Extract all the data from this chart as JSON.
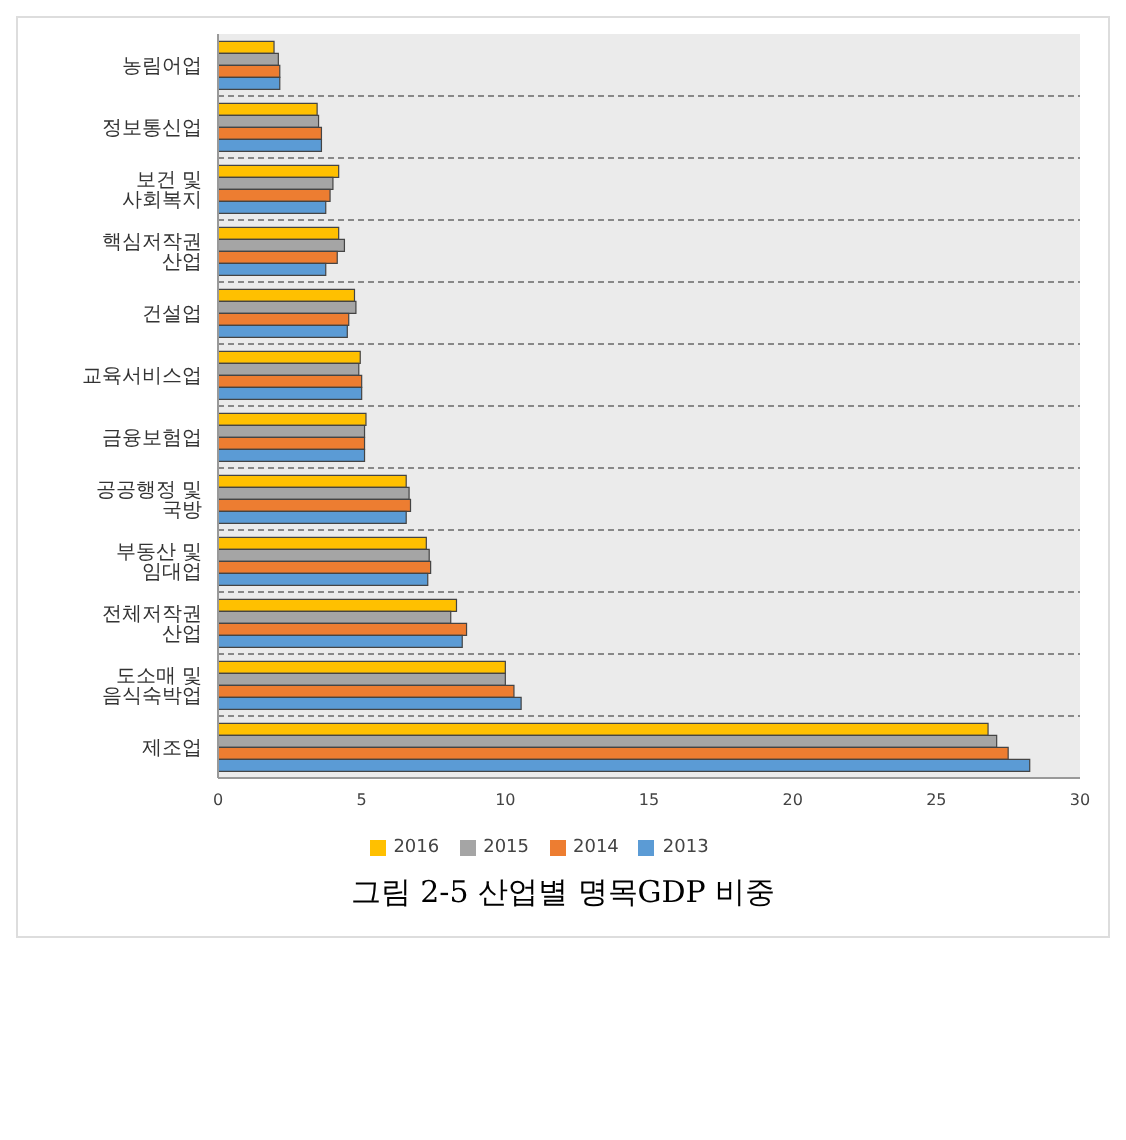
{
  "chart_data": {
    "type": "bar",
    "orientation": "horizontal",
    "title": "그림 2-5 산업별 명목GDP 비중",
    "categories": [
      "농림어업",
      "정보통신업",
      "보건 및 사회복지",
      "핵심저작권 산업",
      "건설업",
      "교육서비스업",
      "금융보험업",
      "공공행정 및 국방",
      "부동산 및 임대업",
      "전체저작권 산업",
      "도소매 및 음식숙박업",
      "제조업"
    ],
    "series": [
      {
        "name": "2016",
        "color": "#ffc000",
        "values": [
          1.95,
          3.45,
          4.2,
          4.2,
          4.75,
          4.95,
          5.15,
          6.55,
          7.25,
          8.3,
          10.0,
          26.8
        ]
      },
      {
        "name": "2015",
        "color": "#a5a5a5",
        "values": [
          2.1,
          3.5,
          4.0,
          4.4,
          4.8,
          4.9,
          5.1,
          6.65,
          7.35,
          8.1,
          10.0,
          27.1
        ]
      },
      {
        "name": "2014",
        "color": "#ed7d31",
        "values": [
          2.15,
          3.6,
          3.9,
          4.15,
          4.55,
          5.0,
          5.1,
          6.7,
          7.4,
          8.65,
          10.3,
          27.5
        ]
      },
      {
        "name": "2013",
        "color": "#5b9bd5",
        "values": [
          2.15,
          3.6,
          3.75,
          3.75,
          4.5,
          5.0,
          5.1,
          6.55,
          7.3,
          8.5,
          10.55,
          28.25
        ]
      }
    ],
    "xlim": [
      0,
      30
    ],
    "xticks": [
      0,
      5,
      10,
      15,
      20,
      25,
      30
    ],
    "grid": "y",
    "legend": "bottom"
  }
}
